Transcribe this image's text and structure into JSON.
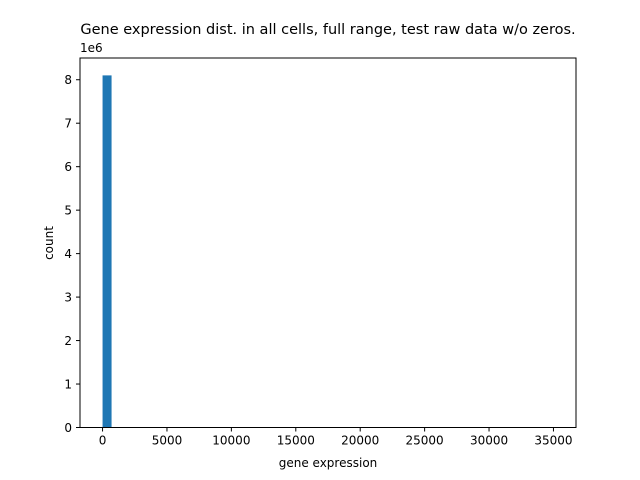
{
  "chart_data": {
    "type": "bar",
    "title": "Gene expression dist. in all cells, full range, test raw data w/o zeros.",
    "xlabel": "gene expression",
    "ylabel": "count",
    "y_offset_label": "1e6",
    "xlim": [
      -1750,
      36750
    ],
    "ylim": [
      0,
      8.5
    ],
    "y_unit_multiplier": 1000000,
    "x_ticks": [
      0,
      5000,
      10000,
      15000,
      20000,
      25000,
      30000,
      35000
    ],
    "y_ticks": [
      0,
      1,
      2,
      3,
      4,
      5,
      6,
      7,
      8
    ],
    "bins": [
      {
        "x_start": 1,
        "x_end": 700,
        "value": 8.1
      }
    ],
    "grid": false,
    "bar_color": "#1f77b4"
  }
}
